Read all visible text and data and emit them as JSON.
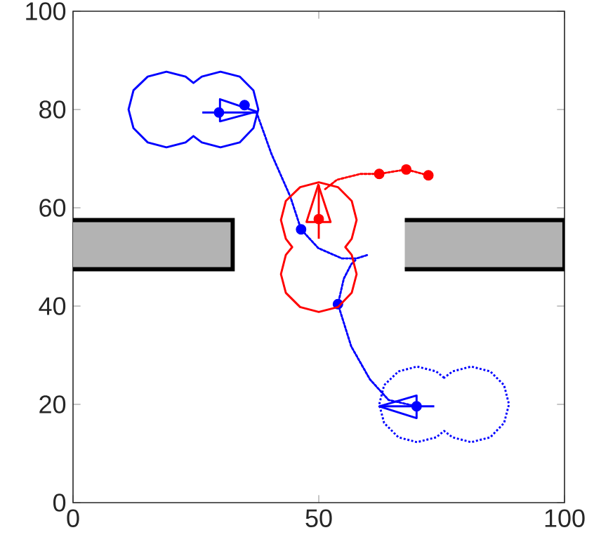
{
  "chart_data": {
    "type": "line",
    "xlim": [
      0,
      100
    ],
    "ylim": [
      0,
      100
    ],
    "xticks": [
      0,
      50,
      100
    ],
    "yticks": [
      0,
      20,
      40,
      60,
      80,
      100
    ],
    "series": [
      {
        "type": "area",
        "color": "#b3b3b3",
        "x": [
          0,
          32.5,
          32.5,
          0
        ],
        "values": [
          47.5,
          47.5,
          57.5,
          57.5
        ]
      },
      {
        "type": "area",
        "color": "#b3b3b3",
        "x": [
          67.5,
          100,
          100,
          67.5
        ],
        "values": [
          47.5,
          47.5,
          57.5,
          57.5
        ]
      },
      {
        "color": "#0000ff",
        "line_style": "dotted",
        "x": [
          37.3,
          40.4,
          44.2,
          46.4,
          49.9,
          54.7,
          57.7,
          59.9
        ],
        "values": [
          79.5,
          70.9,
          62.3,
          55.6,
          51.8,
          49.7,
          49.7,
          50.4
        ]
      },
      {
        "color": "#0000ff",
        "line_style": "dotted",
        "x": [
          69.9,
          64.2,
          60.4,
          56.6,
          53.9,
          55.1,
          56.6,
          57.5
        ],
        "values": [
          19.6,
          20.9,
          25.1,
          31.8,
          40.4,
          45.6,
          48.5,
          49.4
        ]
      },
      {
        "color": "#ff0000",
        "line_style": "dotted",
        "x": [
          51.3,
          53.7,
          58.5,
          62.3,
          67.8,
          72.3
        ],
        "values": [
          63.8,
          65.7,
          66.9,
          66.9,
          67.8,
          66.6
        ]
      },
      {
        "type": "scatter",
        "color": "#0000ff",
        "marker": "circle",
        "x": [
          29.7,
          34.9,
          46.4,
          53.9,
          69.9
        ],
        "values": [
          79.4,
          80.9,
          55.6,
          40.4,
          19.6
        ]
      },
      {
        "type": "scatter",
        "color": "#ff0000",
        "marker": "circle",
        "x": [
          50,
          62.3,
          67.8,
          72.3
        ],
        "values": [
          57.7,
          66.9,
          67.8,
          66.6
        ]
      }
    ]
  }
}
